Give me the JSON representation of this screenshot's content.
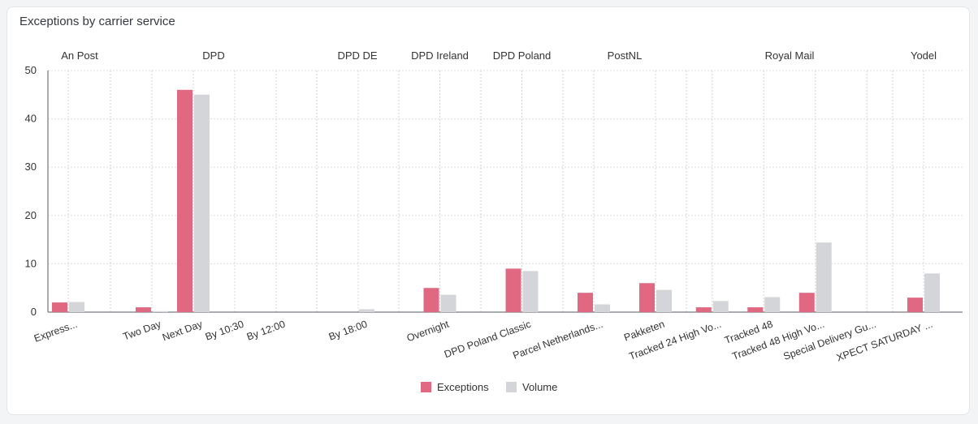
{
  "card": {
    "title": "Exceptions by carrier service"
  },
  "chart_data": {
    "type": "bar",
    "title": "Exceptions by carrier service",
    "ylim": [
      0,
      50
    ],
    "yticks": [
      0,
      10,
      20,
      30,
      40,
      50
    ],
    "grid": true,
    "legend_position": "bottom-center",
    "groups": [
      {
        "name": "An Post",
        "categories": [
          "Express..."
        ]
      },
      {
        "name": "DPD",
        "categories": [
          "Two Day",
          "Next Day",
          "By 10:30",
          "By 12:00"
        ]
      },
      {
        "name": "DPD DE",
        "categories": [
          "By 18:00"
        ]
      },
      {
        "name": "DPD Ireland",
        "categories": [
          "Overnight"
        ]
      },
      {
        "name": "DPD Poland",
        "categories": [
          "DPD Poland Classic"
        ]
      },
      {
        "name": "PostNL",
        "categories": [
          "Parcel Netherlands...",
          "Pakketen"
        ]
      },
      {
        "name": "Royal Mail",
        "categories": [
          "Tracked 24 High Vo...",
          "Tracked 48",
          "Tracked 48 High Vo...",
          "Special Delivery Gu..."
        ]
      },
      {
        "name": "Yodel",
        "categories": [
          "XPECT SATURDAY ..."
        ]
      }
    ],
    "categories": [
      "Express...",
      "Two Day",
      "Next Day",
      "By 10:30",
      "By 12:00",
      "By 18:00",
      "Overnight",
      "DPD Poland Classic",
      "Parcel Netherlands...",
      "Pakketen",
      "Tracked 24 High Vo...",
      "Tracked 48",
      "Tracked 48 High Vo...",
      "Special Delivery Gu...",
      "XPECT SATURDAY ..."
    ],
    "series": [
      {
        "name": "Exceptions",
        "color": "#e06880",
        "values": [
          2,
          1,
          46,
          0,
          0,
          0,
          5,
          9,
          4,
          6,
          1,
          1,
          4,
          0,
          3
        ]
      },
      {
        "name": "Volume",
        "color": "#d3d5d9",
        "values": [
          2.1,
          0.2,
          45,
          0,
          0,
          0.6,
          3.6,
          8.5,
          1.6,
          4.6,
          2.3,
          3.1,
          14.4,
          0,
          8
        ]
      }
    ]
  }
}
